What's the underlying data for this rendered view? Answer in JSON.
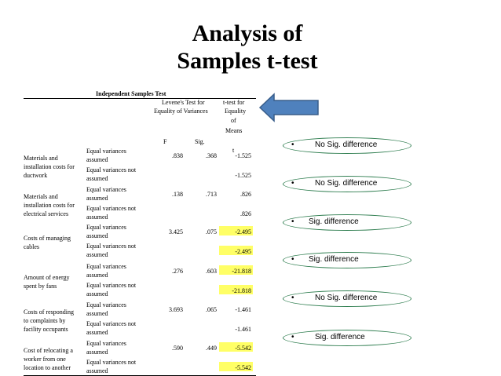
{
  "title_line1": "Analysis of",
  "title_line2": "Samples t-test",
  "table": {
    "caption": "Independent Samples Test",
    "header": {
      "levene_l1": "Levene's Test for",
      "levene_l2": "Equality of Variances",
      "ttest_l1": "t-test for",
      "ttest_l2": "Equality",
      "ttest_l3": "of",
      "ttest_l4": "Means",
      "f": "F",
      "sig": "Sig.",
      "t": "t"
    },
    "rows": [
      {
        "group_lines": [
          "Materials and",
          "installation costs for",
          "ductwork"
        ],
        "eq_assumed": [
          "Equal variances",
          "assumed"
        ],
        "eq_not_assumed": [
          "Equal variances not",
          "assumed"
        ],
        "f": ".838",
        "sig": ".368",
        "t1": "-1.525",
        "t2": "-1.525"
      },
      {
        "group_lines": [
          "Materials and",
          "installation costs for",
          "electrical services"
        ],
        "eq_assumed": [
          "Equal variances",
          "assumed"
        ],
        "eq_not_assumed": [
          "Equal variances not",
          "assumed"
        ],
        "f": ".138",
        "sig": ".713",
        "t1": ".826",
        "t2": ".826"
      },
      {
        "group_lines": [
          "Costs of managing",
          "cables"
        ],
        "eq_assumed": [
          "Equal variances",
          "assumed"
        ],
        "eq_not_assumed": [
          "Equal variances not",
          "assumed"
        ],
        "f": "3.425",
        "sig": ".075",
        "t1": "-2.495",
        "t2": "-2.495"
      },
      {
        "group_lines": [
          "Amount of energy",
          "spent by fans"
        ],
        "eq_assumed": [
          "Equal variances",
          "assumed"
        ],
        "eq_not_assumed": [
          "Equal variances not",
          "assumed"
        ],
        "f": ".276",
        "sig": ".603",
        "t1": "-21.818",
        "t2": "-21.818"
      },
      {
        "group_lines": [
          "Costs of responding",
          "to complaints by",
          "facility occupants"
        ],
        "eq_assumed": [
          "Equal variances",
          "assumed"
        ],
        "eq_not_assumed": [
          "Equal variances not",
          "assumed"
        ],
        "f": "3.693",
        "sig": ".065",
        "t1": "-1.461",
        "t2": "-1.461"
      },
      {
        "group_lines": [
          "Cost of relocating a",
          "worker from one",
          "location to another"
        ],
        "eq_assumed": [
          "Equal variances",
          "assumed"
        ],
        "eq_not_assumed": [
          "Equal variances not",
          "assumed"
        ],
        "f": ".590",
        "sig": ".449",
        "t1": "-5.542",
        "t2": "-5.542"
      }
    ]
  },
  "results": [
    {
      "bullet": "•",
      "label": "No Sig. difference"
    },
    {
      "bullet": "•",
      "label": "No Sig. difference"
    },
    {
      "bullet": "•",
      "label": "Sig. difference"
    },
    {
      "bullet": "•",
      "label": "Sig. difference"
    },
    {
      "bullet": "•",
      "label": "No Sig. difference"
    },
    {
      "bullet": "•",
      "label": "Sig. difference"
    }
  ],
  "colors": {
    "highlight": "#ffff66",
    "oval_border": "#2e7d4f",
    "arrow_fill": "#4f81bd",
    "arrow_stroke": "#385d8a"
  },
  "icons": {
    "arrow": "left-arrow-icon",
    "bullet": "bullet-icon"
  }
}
